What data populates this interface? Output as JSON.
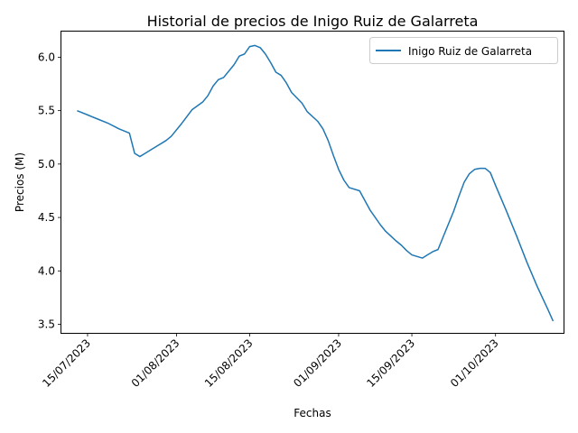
{
  "chart_data": {
    "type": "line",
    "title": "Historial de precios de Inigo Ruiz de Galarreta",
    "xlabel": "Fechas",
    "ylabel": "Precios (M)",
    "x_ticks": [
      "15/07/2023",
      "01/08/2023",
      "15/08/2023",
      "01/09/2023",
      "15/09/2023",
      "01/10/2023"
    ],
    "y_ticks": [
      "3.5",
      "4.0",
      "4.5",
      "5.0",
      "5.5",
      "6.0"
    ],
    "ylim": [
      3.42,
      6.24
    ],
    "xlim": [
      "2023-07-10",
      "2023-10-14"
    ],
    "legend_position": "top-right",
    "grid": false,
    "line_color": "#1f77b4",
    "series": [
      {
        "name": "Inigo Ruiz de Galarreta",
        "points": [
          [
            "2023-07-13",
            5.5
          ],
          [
            "2023-07-15",
            5.46
          ],
          [
            "2023-07-17",
            5.42
          ],
          [
            "2023-07-19",
            5.38
          ],
          [
            "2023-07-21",
            5.33
          ],
          [
            "2023-07-23",
            5.29
          ],
          [
            "2023-07-24",
            5.1
          ],
          [
            "2023-07-25",
            5.07
          ],
          [
            "2023-07-26",
            5.1
          ],
          [
            "2023-07-28",
            5.16
          ],
          [
            "2023-07-30",
            5.22
          ],
          [
            "2023-07-31",
            5.26
          ],
          [
            "2023-08-02",
            5.38
          ],
          [
            "2023-08-04",
            5.51
          ],
          [
            "2023-08-06",
            5.58
          ],
          [
            "2023-08-07",
            5.64
          ],
          [
            "2023-08-08",
            5.73
          ],
          [
            "2023-08-09",
            5.79
          ],
          [
            "2023-08-10",
            5.81
          ],
          [
            "2023-08-12",
            5.93
          ],
          [
            "2023-08-13",
            6.01
          ],
          [
            "2023-08-14",
            6.03
          ],
          [
            "2023-08-15",
            6.1
          ],
          [
            "2023-08-16",
            6.11
          ],
          [
            "2023-08-17",
            6.09
          ],
          [
            "2023-08-18",
            6.03
          ],
          [
            "2023-08-19",
            5.95
          ],
          [
            "2023-08-20",
            5.86
          ],
          [
            "2023-08-21",
            5.83
          ],
          [
            "2023-08-22",
            5.76
          ],
          [
            "2023-08-23",
            5.67
          ],
          [
            "2023-08-25",
            5.57
          ],
          [
            "2023-08-26",
            5.49
          ],
          [
            "2023-08-28",
            5.4
          ],
          [
            "2023-08-29",
            5.33
          ],
          [
            "2023-08-30",
            5.22
          ],
          [
            "2023-08-31",
            5.08
          ],
          [
            "2023-09-01",
            4.95
          ],
          [
            "2023-09-02",
            4.85
          ],
          [
            "2023-09-03",
            4.78
          ],
          [
            "2023-09-05",
            4.75
          ],
          [
            "2023-09-06",
            4.66
          ],
          [
            "2023-09-07",
            4.57
          ],
          [
            "2023-09-09",
            4.43
          ],
          [
            "2023-09-10",
            4.37
          ],
          [
            "2023-09-12",
            4.28
          ],
          [
            "2023-09-13",
            4.24
          ],
          [
            "2023-09-14",
            4.19
          ],
          [
            "2023-09-15",
            4.15
          ],
          [
            "2023-09-17",
            4.12
          ],
          [
            "2023-09-18",
            4.15
          ],
          [
            "2023-09-19",
            4.18
          ],
          [
            "2023-09-20",
            4.2
          ],
          [
            "2023-09-21",
            4.32
          ],
          [
            "2023-09-23",
            4.56
          ],
          [
            "2023-09-24",
            4.7
          ],
          [
            "2023-09-25",
            4.83
          ],
          [
            "2023-09-26",
            4.91
          ],
          [
            "2023-09-27",
            4.95
          ],
          [
            "2023-09-28",
            4.96
          ],
          [
            "2023-09-29",
            4.96
          ],
          [
            "2023-09-30",
            4.92
          ],
          [
            "2023-10-01",
            4.8
          ],
          [
            "2023-10-03",
            4.57
          ],
          [
            "2023-10-05",
            4.33
          ],
          [
            "2023-10-07",
            4.08
          ],
          [
            "2023-10-09",
            3.85
          ],
          [
            "2023-10-11",
            3.64
          ],
          [
            "2023-10-12",
            3.53
          ]
        ]
      }
    ]
  }
}
